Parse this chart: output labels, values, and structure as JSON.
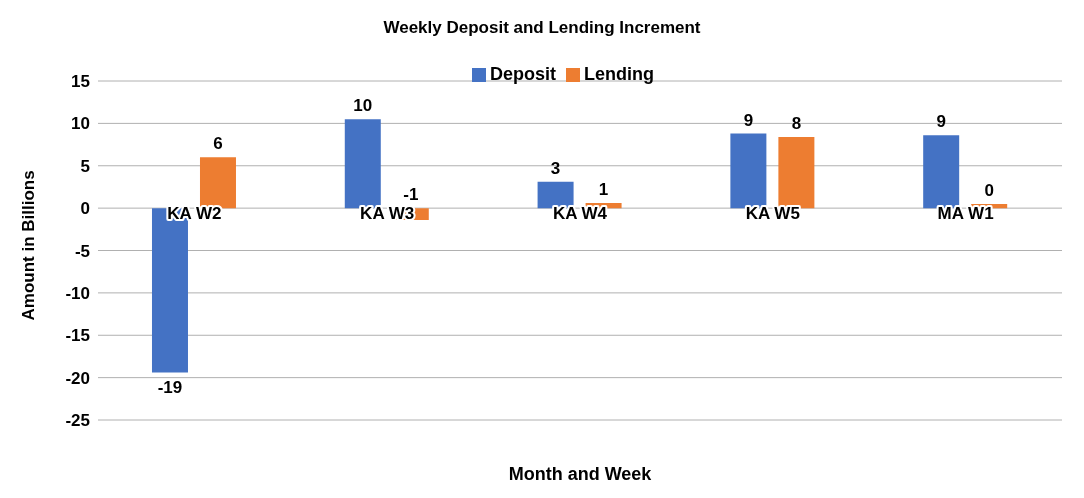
{
  "chart_data": {
    "type": "bar",
    "title": "Weekly Deposit and Lending  Increment",
    "xlabel": "Month and Week",
    "ylabel": "Amount in Billions",
    "categories": [
      "KA W2",
      "KA W3",
      "KA W4",
      "KA W5",
      "MA W1"
    ],
    "series": [
      {
        "name": "Deposit",
        "color": "#4472c4",
        "values": [
          -19.4,
          10.5,
          3.1,
          8.8,
          8.6
        ],
        "value_labels": [
          "-19",
          "10",
          "3",
          "9",
          "9"
        ]
      },
      {
        "name": "Lending",
        "color": "#ed7d31",
        "values": [
          6.0,
          -1.4,
          0.6,
          8.4,
          0.5
        ],
        "value_labels": [
          "6",
          "-1",
          "1",
          "8",
          "0"
        ]
      }
    ],
    "ylim": [
      -25,
      15
    ],
    "yticks": [
      -25,
      -20,
      -15,
      -10,
      -5,
      0,
      5,
      10,
      15
    ],
    "grid": "y",
    "legend": "top"
  }
}
